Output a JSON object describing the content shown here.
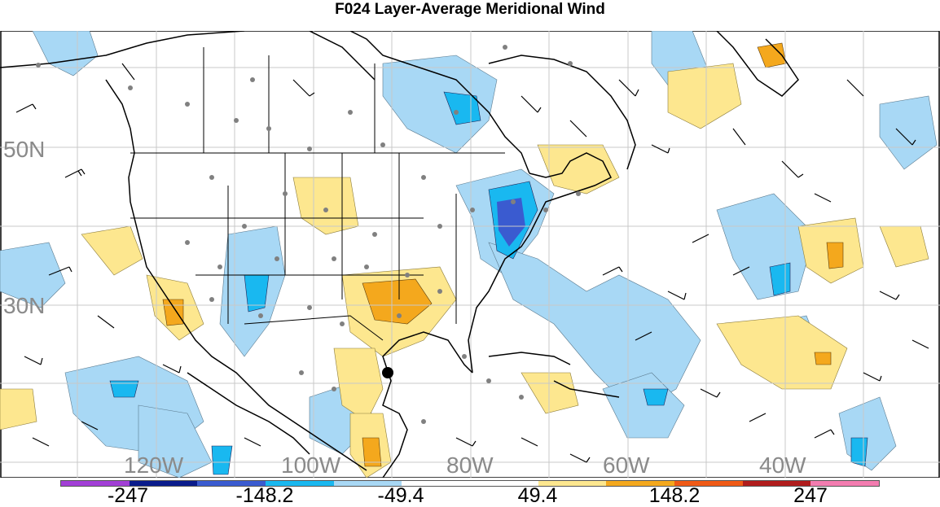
{
  "title": "F024 Layer-Average Meridional Wind",
  "lat_labels": [
    "50N",
    "30N"
  ],
  "lon_labels": [
    "120W",
    "100W",
    "80W",
    "60W",
    "40W"
  ],
  "colorbar": {
    "colors": [
      "#a23fd6",
      "#0a1c8c",
      "#3a5bd0",
      "#19b8f0",
      "#a8d8f5",
      "#ffffff",
      "#ffffff",
      "#fde78f",
      "#f4a81d",
      "#f05a16",
      "#b01c1c",
      "#f37cb0"
    ],
    "labels": [
      "-247",
      "-148.2",
      "-49.4",
      "49.4",
      "148.2",
      "247"
    ]
  },
  "marker": "cyclone-center"
}
